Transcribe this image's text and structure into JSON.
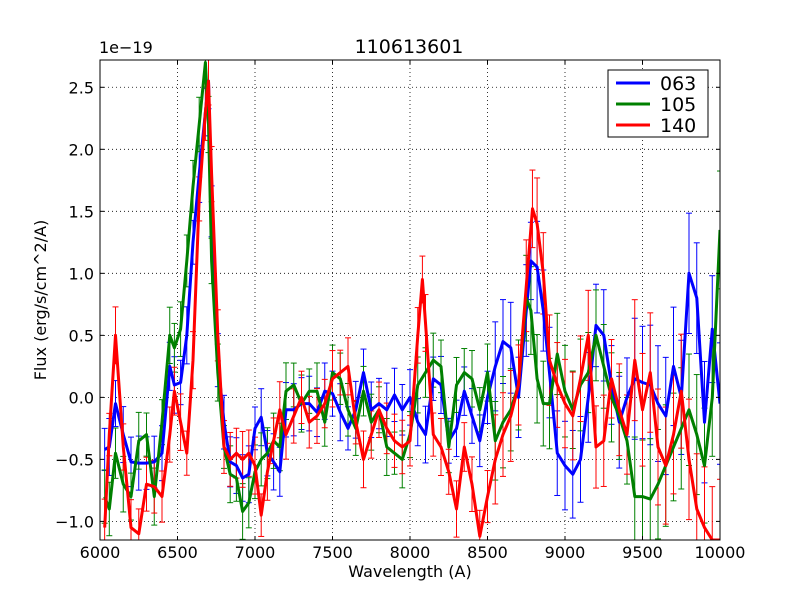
{
  "chart_data": {
    "type": "line",
    "title": "110613601",
    "xlabel": "Wavelength (A)",
    "ylabel": "Flux (erg/s/cm^2/A)",
    "y_offset_label": "1e−19",
    "xlim": [
      6000,
      10000
    ],
    "ylim": [
      -1.15,
      2.72
    ],
    "x_ticks": [
      6000,
      6500,
      7000,
      7500,
      8000,
      8500,
      9000,
      9500,
      10000
    ],
    "x_tick_labels": [
      "6000",
      "6500",
      "7000",
      "7500",
      "8000",
      "8500",
      "9000",
      "9500",
      "10000"
    ],
    "y_ticks": [
      -1.0,
      -0.5,
      0.0,
      0.5,
      1.0,
      1.5,
      2.0,
      2.5
    ],
    "y_tick_labels": [
      "−1.0",
      "−0.5",
      "0.0",
      "0.5",
      "1.0",
      "1.5",
      "2.0",
      "2.5"
    ],
    "grid": true,
    "legend_position": "top-right",
    "series": [
      {
        "name": "063",
        "color": "#0000ff",
        "points": [
          [
            6030,
            -0.42
          ],
          [
            6060,
            -0.4
          ],
          [
            6100,
            -0.05
          ],
          [
            6150,
            -0.3
          ],
          [
            6200,
            -0.52
          ],
          [
            6250,
            -0.53
          ],
          [
            6300,
            -0.53
          ],
          [
            6350,
            -0.52
          ],
          [
            6400,
            -0.45
          ],
          [
            6450,
            0.25
          ],
          [
            6480,
            0.1
          ],
          [
            6520,
            0.12
          ],
          [
            6560,
            0.5
          ],
          [
            6600,
            1.25
          ],
          [
            6640,
            1.8
          ],
          [
            6680,
            2.3
          ],
          [
            6700,
            2.55
          ],
          [
            6720,
            1.5
          ],
          [
            6760,
            0.3
          ],
          [
            6800,
            -0.2
          ],
          [
            6840,
            -0.52
          ],
          [
            6880,
            -0.55
          ],
          [
            6920,
            -0.65
          ],
          [
            6960,
            -0.62
          ],
          [
            7000,
            -0.25
          ],
          [
            7040,
            -0.16
          ],
          [
            7080,
            -0.45
          ],
          [
            7120,
            -0.52
          ],
          [
            7160,
            -0.6
          ],
          [
            7200,
            -0.1
          ],
          [
            7250,
            -0.1
          ],
          [
            7300,
            -0.05
          ],
          [
            7350,
            -0.05
          ],
          [
            7400,
            -0.12
          ],
          [
            7450,
            0.05
          ],
          [
            7500,
            0.03
          ],
          [
            7550,
            -0.12
          ],
          [
            7600,
            -0.25
          ],
          [
            7650,
            -0.1
          ],
          [
            7700,
            0.2
          ],
          [
            7750,
            -0.1
          ],
          [
            7800,
            -0.05
          ],
          [
            7850,
            -0.1
          ],
          [
            7900,
            0.02
          ],
          [
            7950,
            -0.1
          ],
          [
            8000,
            0.0
          ],
          [
            8050,
            -0.2
          ],
          [
            8100,
            -0.3
          ],
          [
            8150,
            0.15
          ],
          [
            8200,
            0.1
          ],
          [
            8250,
            -0.35
          ],
          [
            8300,
            -0.25
          ],
          [
            8350,
            0.05
          ],
          [
            8400,
            -0.15
          ],
          [
            8450,
            -0.35
          ],
          [
            8500,
            0.0
          ],
          [
            8550,
            0.25
          ],
          [
            8600,
            0.45
          ],
          [
            8650,
            0.4
          ],
          [
            8700,
            0.0
          ],
          [
            8750,
            0.7
          ],
          [
            8780,
            1.1
          ],
          [
            8820,
            1.05
          ],
          [
            8860,
            0.7
          ],
          [
            8900,
            0.2
          ],
          [
            8950,
            -0.45
          ],
          [
            9000,
            -0.55
          ],
          [
            9050,
            -0.62
          ],
          [
            9100,
            -0.5
          ],
          [
            9150,
            0.0
          ],
          [
            9200,
            0.58
          ],
          [
            9250,
            0.5
          ],
          [
            9300,
            0.1
          ],
          [
            9350,
            -0.2
          ],
          [
            9400,
            0.0
          ],
          [
            9450,
            0.15
          ],
          [
            9500,
            0.12
          ],
          [
            9550,
            0.1
          ],
          [
            9600,
            -0.05
          ],
          [
            9650,
            -0.15
          ],
          [
            9700,
            0.25
          ],
          [
            9750,
            0.0
          ],
          [
            9800,
            1.0
          ],
          [
            9850,
            0.8
          ],
          [
            9900,
            -0.2
          ],
          [
            9950,
            0.55
          ],
          [
            10000,
            -0.05
          ]
        ]
      },
      {
        "name": "105",
        "color": "#008000",
        "points": [
          [
            6030,
            -0.8
          ],
          [
            6060,
            -0.9
          ],
          [
            6100,
            -0.45
          ],
          [
            6150,
            -0.7
          ],
          [
            6200,
            -0.8
          ],
          [
            6250,
            -0.35
          ],
          [
            6300,
            -0.3
          ],
          [
            6350,
            -0.8
          ],
          [
            6400,
            -0.2
          ],
          [
            6450,
            0.5
          ],
          [
            6480,
            0.4
          ],
          [
            6520,
            0.55
          ],
          [
            6560,
            1.1
          ],
          [
            6600,
            1.7
          ],
          [
            6640,
            2.2
          ],
          [
            6680,
            2.7
          ],
          [
            6700,
            2.2
          ],
          [
            6720,
            1.1
          ],
          [
            6760,
            0.2
          ],
          [
            6800,
            -0.4
          ],
          [
            6840,
            -0.62
          ],
          [
            6880,
            -0.65
          ],
          [
            6920,
            -0.92
          ],
          [
            6960,
            -0.85
          ],
          [
            7000,
            -0.6
          ],
          [
            7040,
            -0.5
          ],
          [
            7080,
            -0.45
          ],
          [
            7120,
            -0.35
          ],
          [
            7160,
            -0.4
          ],
          [
            7200,
            0.05
          ],
          [
            7250,
            0.1
          ],
          [
            7300,
            -0.05
          ],
          [
            7350,
            0.05
          ],
          [
            7400,
            0.05
          ],
          [
            7450,
            -0.2
          ],
          [
            7500,
            0.2
          ],
          [
            7550,
            0.15
          ],
          [
            7600,
            -0.1
          ],
          [
            7650,
            -0.25
          ],
          [
            7700,
            0.05
          ],
          [
            7750,
            -0.2
          ],
          [
            7800,
            -0.1
          ],
          [
            7850,
            -0.4
          ],
          [
            7900,
            -0.45
          ],
          [
            7950,
            -0.5
          ],
          [
            8000,
            -0.3
          ],
          [
            8050,
            0.1
          ],
          [
            8100,
            0.2
          ],
          [
            8150,
            0.3
          ],
          [
            8200,
            0.25
          ],
          [
            8250,
            -0.4
          ],
          [
            8300,
            0.1
          ],
          [
            8350,
            0.2
          ],
          [
            8400,
            0.15
          ],
          [
            8450,
            -0.1
          ],
          [
            8500,
            0.2
          ],
          [
            8550,
            -0.35
          ],
          [
            8600,
            -0.2
          ],
          [
            8650,
            -0.1
          ],
          [
            8700,
            0.1
          ],
          [
            8750,
            0.8
          ],
          [
            8780,
            0.7
          ],
          [
            8820,
            0.15
          ],
          [
            8860,
            -0.05
          ],
          [
            8900,
            -0.05
          ],
          [
            8950,
            0.35
          ],
          [
            9000,
            0.05
          ],
          [
            9050,
            -0.1
          ],
          [
            9100,
            0.1
          ],
          [
            9150,
            0.2
          ],
          [
            9200,
            0.5
          ],
          [
            9250,
            0.25
          ],
          [
            9300,
            0.0
          ],
          [
            9350,
            -0.15
          ],
          [
            9400,
            -0.35
          ],
          [
            9450,
            -0.8
          ],
          [
            9500,
            -0.8
          ],
          [
            9550,
            -0.82
          ],
          [
            9600,
            -0.7
          ],
          [
            9650,
            -0.55
          ],
          [
            9700,
            -0.4
          ],
          [
            9750,
            -0.25
          ],
          [
            9800,
            -0.1
          ],
          [
            9850,
            -0.3
          ],
          [
            9900,
            -0.55
          ],
          [
            9950,
            0.0
          ],
          [
            10000,
            1.35
          ]
        ]
      },
      {
        "name": "140",
        "color": "#ff0000",
        "points": [
          [
            6030,
            -1.05
          ],
          [
            6060,
            -0.3
          ],
          [
            6100,
            0.5
          ],
          [
            6150,
            -0.4
          ],
          [
            6200,
            -1.05
          ],
          [
            6250,
            -1.1
          ],
          [
            6300,
            -0.7
          ],
          [
            6350,
            -0.72
          ],
          [
            6400,
            -0.8
          ],
          [
            6450,
            -0.3
          ],
          [
            6480,
            0.05
          ],
          [
            6520,
            -0.2
          ],
          [
            6560,
            -0.45
          ],
          [
            6600,
            0.3
          ],
          [
            6640,
            1.6
          ],
          [
            6680,
            2.3
          ],
          [
            6700,
            2.55
          ],
          [
            6720,
            1.8
          ],
          [
            6760,
            0.5
          ],
          [
            6800,
            -0.4
          ],
          [
            6840,
            -0.5
          ],
          [
            6880,
            -0.45
          ],
          [
            6920,
            -0.5
          ],
          [
            6960,
            -0.45
          ],
          [
            7000,
            -0.55
          ],
          [
            7040,
            -0.95
          ],
          [
            7080,
            -0.6
          ],
          [
            7120,
            -0.35
          ],
          [
            7160,
            -0.1
          ],
          [
            7200,
            -0.3
          ],
          [
            7250,
            -0.15
          ],
          [
            7300,
            0.0
          ],
          [
            7350,
            -0.2
          ],
          [
            7400,
            -0.15
          ],
          [
            7450,
            -0.05
          ],
          [
            7500,
            0.15
          ],
          [
            7550,
            0.2
          ],
          [
            7600,
            0.25
          ],
          [
            7650,
            -0.2
          ],
          [
            7700,
            -0.5
          ],
          [
            7750,
            -0.3
          ],
          [
            7800,
            -0.1
          ],
          [
            7850,
            -0.25
          ],
          [
            7900,
            -0.35
          ],
          [
            7950,
            -0.4
          ],
          [
            8000,
            -0.35
          ],
          [
            8050,
            0.5
          ],
          [
            8080,
            0.95
          ],
          [
            8100,
            0.6
          ],
          [
            8150,
            -0.3
          ],
          [
            8200,
            -0.4
          ],
          [
            8250,
            -0.6
          ],
          [
            8300,
            -0.9
          ],
          [
            8350,
            -0.4
          ],
          [
            8400,
            -0.7
          ],
          [
            8450,
            -1.12
          ],
          [
            8500,
            -0.8
          ],
          [
            8550,
            -0.5
          ],
          [
            8600,
            -0.3
          ],
          [
            8650,
            -0.15
          ],
          [
            8700,
            0.1
          ],
          [
            8750,
            0.9
          ],
          [
            8790,
            1.52
          ],
          [
            8820,
            1.4
          ],
          [
            8860,
            1.0
          ],
          [
            8900,
            0.3
          ],
          [
            8950,
            0.1
          ],
          [
            9000,
            -0.05
          ],
          [
            9050,
            -0.15
          ],
          [
            9100,
            0.15
          ],
          [
            9150,
            0.5
          ],
          [
            9200,
            -0.4
          ],
          [
            9250,
            -0.35
          ],
          [
            9300,
            0.15
          ],
          [
            9350,
            -0.1
          ],
          [
            9400,
            -0.3
          ],
          [
            9450,
            0.3
          ],
          [
            9500,
            -0.1
          ],
          [
            9550,
            0.2
          ],
          [
            9600,
            -0.4
          ],
          [
            9650,
            -0.55
          ],
          [
            9700,
            -0.3
          ],
          [
            9750,
            0.05
          ],
          [
            9800,
            -0.5
          ],
          [
            9850,
            -0.9
          ],
          [
            9900,
            -1.05
          ],
          [
            9950,
            -1.15
          ],
          [
            10000,
            -1.15
          ]
        ]
      }
    ]
  }
}
